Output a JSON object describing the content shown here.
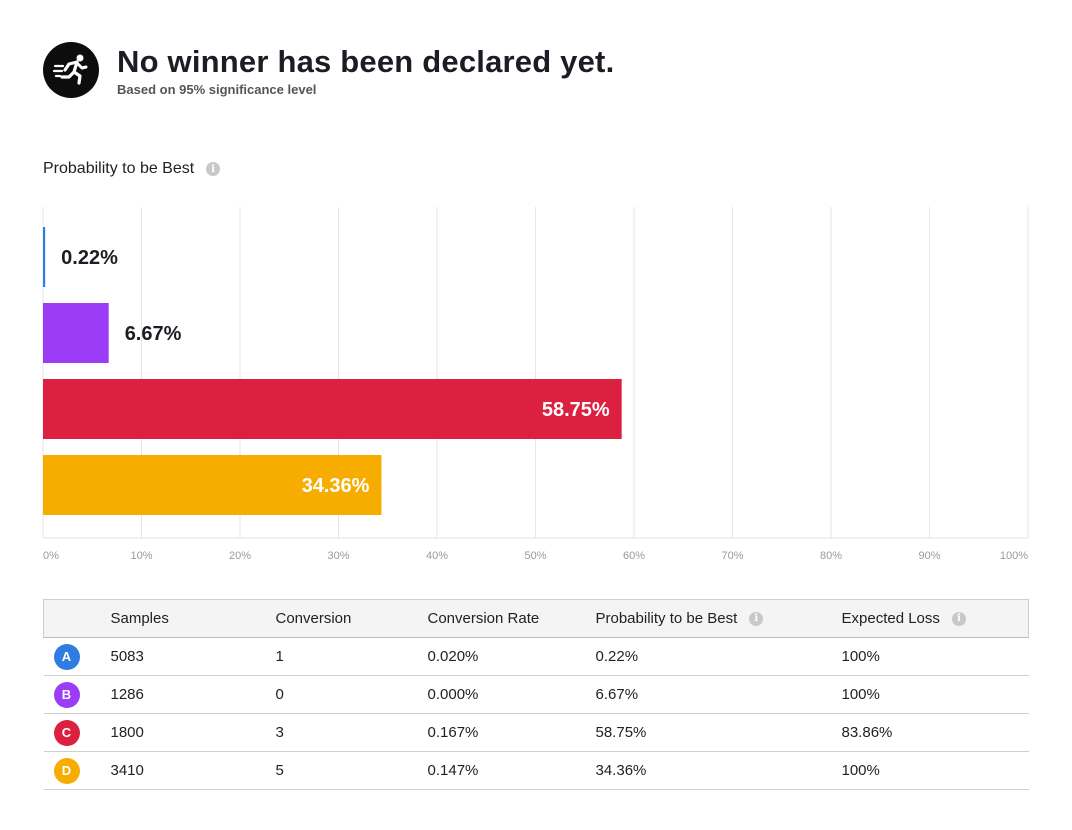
{
  "header": {
    "title": "No winner has been declared yet.",
    "subtitle": "Based on 95% significance level",
    "logo_icon": "running-person-icon"
  },
  "section": {
    "label": "Probability to be Best",
    "info_icon": "i"
  },
  "chart_data": {
    "type": "bar",
    "orientation": "horizontal",
    "title": "Probability to be Best",
    "categories": [
      "A",
      "B",
      "C",
      "D"
    ],
    "values": [
      0.22,
      6.67,
      58.75,
      34.36
    ],
    "value_labels": [
      "0.22%",
      "6.67%",
      "58.75%",
      "34.36%"
    ],
    "colors": [
      "#2f7de1",
      "#9b3cf7",
      "#dc2040",
      "#f7ad00"
    ],
    "xlim": [
      0,
      100
    ],
    "x_ticks": [
      "0%",
      "10%",
      "20%",
      "30%",
      "40%",
      "50%",
      "60%",
      "70%",
      "80%",
      "90%",
      "100%"
    ],
    "grid": true
  },
  "table": {
    "headers": [
      "",
      "Samples",
      "Conversion",
      "Conversion Rate",
      "Probability to be Best",
      "Expected Loss"
    ],
    "header_info_icon": "i",
    "rows": [
      {
        "variant": "A",
        "color": "#2f7de1",
        "samples": "5083",
        "conversion": "1",
        "rate": "0.020%",
        "prob": "0.22%",
        "loss": "100%"
      },
      {
        "variant": "B",
        "color": "#9b3cf7",
        "samples": "1286",
        "conversion": "0",
        "rate": "0.000%",
        "prob": "6.67%",
        "loss": "100%"
      },
      {
        "variant": "C",
        "color": "#dc2040",
        "samples": "1800",
        "conversion": "3",
        "rate": "0.167%",
        "prob": "58.75%",
        "loss": "83.86%"
      },
      {
        "variant": "D",
        "color": "#f7ad00",
        "samples": "3410",
        "conversion": "5",
        "rate": "0.147%",
        "prob": "34.36%",
        "loss": "100%"
      }
    ]
  }
}
